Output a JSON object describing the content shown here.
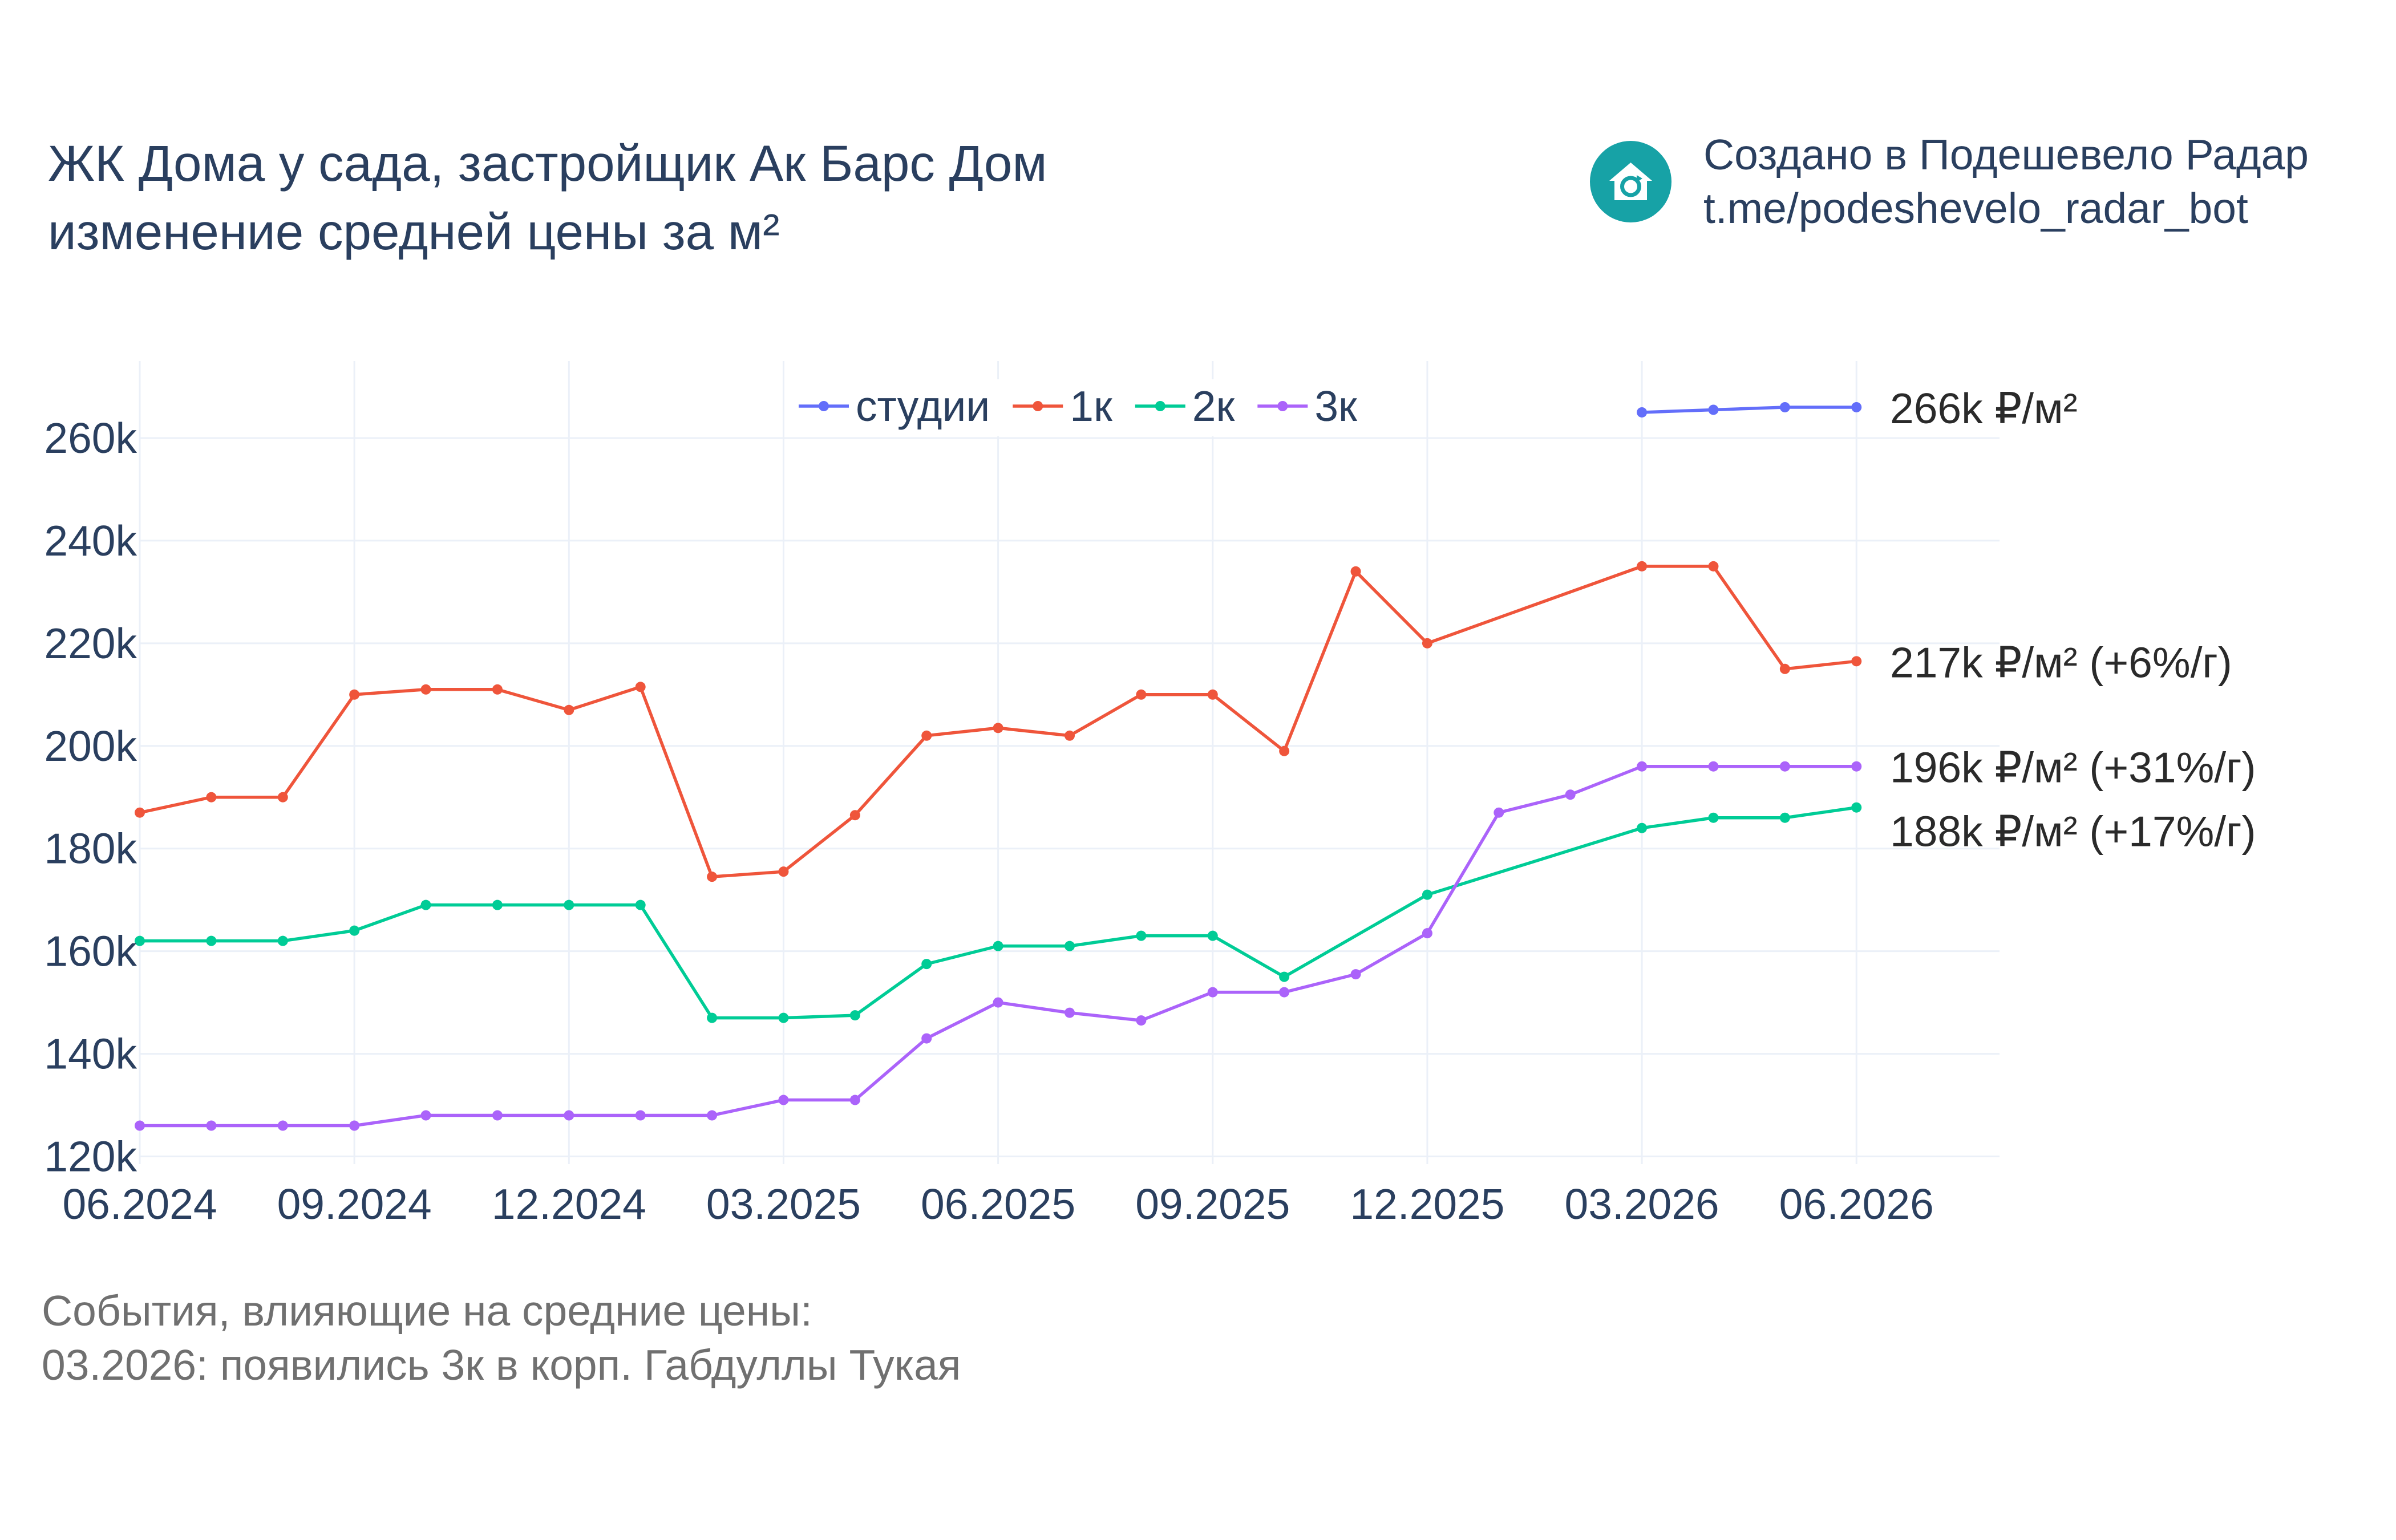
{
  "title": {
    "line1": "ЖК Дома у сада, застройщик Ак Барс Дом",
    "line2": "изменение средней цены за м²"
  },
  "credit": {
    "line1": "Создано в Подешевело Радар",
    "line2": "t.me/podeshevelo_radar_bot",
    "logo_icon": "house-refresh-icon",
    "logo_color": "#17a2a6"
  },
  "notes": {
    "line1": "События, влияющие на средние цены:",
    "line2": "03.2026: появились 3к в корп. Габдуллы Тукая"
  },
  "chart_data": {
    "type": "line",
    "x_tick_labels": [
      "06.2024",
      "09.2024",
      "12.2024",
      "03.2025",
      "06.2025",
      "09.2025",
      "12.2025",
      "03.2026",
      "06.2026"
    ],
    "y_tick_labels": [
      "120k",
      "140k",
      "160k",
      "180k",
      "200k",
      "220k",
      "240k",
      "260k"
    ],
    "y_ticks": [
      120000,
      140000,
      160000,
      180000,
      200000,
      220000,
      240000,
      260000
    ],
    "ylim": [
      118500,
      275000
    ],
    "xlim": [
      "2024-06",
      "2026-08"
    ],
    "grid": true,
    "legend_position": "top-center",
    "series": [
      {
        "name": "студии",
        "color": "#636efa",
        "end_label": "266k ₽/м²",
        "points": [
          [
            "2026-03",
            265000
          ],
          [
            "2026-04",
            265500
          ],
          [
            "2026-05",
            266000
          ],
          [
            "2026-06",
            266000
          ]
        ]
      },
      {
        "name": "1к",
        "color": "#ef553b",
        "end_label": "217k ₽/м² (+6%/г)",
        "points": [
          [
            "2024-06",
            187000
          ],
          [
            "2024-07",
            190000
          ],
          [
            "2024-08",
            190000
          ],
          [
            "2024-09",
            210000
          ],
          [
            "2024-10",
            211000
          ],
          [
            "2024-11",
            211000
          ],
          [
            "2024-12",
            207000
          ],
          [
            "2025-01",
            211500
          ],
          [
            "2025-02",
            174500
          ],
          [
            "2025-03",
            175500
          ],
          [
            "2025-04",
            186500
          ],
          [
            "2025-05",
            202000
          ],
          [
            "2025-06",
            203500
          ],
          [
            "2025-07",
            202000
          ],
          [
            "2025-08",
            210000
          ],
          [
            "2025-09",
            210000
          ],
          [
            "2025-10",
            199000
          ],
          [
            "2025-11",
            234000
          ],
          [
            "2025-12",
            220000
          ],
          [
            "2026-03",
            235000
          ],
          [
            "2026-04",
            235000
          ],
          [
            "2026-05",
            215000
          ],
          [
            "2026-06",
            216500
          ]
        ]
      },
      {
        "name": "2к",
        "color": "#00cc96",
        "end_label": "188k ₽/м² (+17%/г)",
        "points": [
          [
            "2024-06",
            162000
          ],
          [
            "2024-07",
            162000
          ],
          [
            "2024-08",
            162000
          ],
          [
            "2024-09",
            164000
          ],
          [
            "2024-10",
            169000
          ],
          [
            "2024-11",
            169000
          ],
          [
            "2024-12",
            169000
          ],
          [
            "2025-01",
            169000
          ],
          [
            "2025-02",
            147000
          ],
          [
            "2025-03",
            147000
          ],
          [
            "2025-04",
            147500
          ],
          [
            "2025-05",
            157500
          ],
          [
            "2025-06",
            161000
          ],
          [
            "2025-07",
            161000
          ],
          [
            "2025-08",
            163000
          ],
          [
            "2025-09",
            163000
          ],
          [
            "2025-10",
            155000
          ],
          [
            "2025-12",
            171000
          ],
          [
            "2026-03",
            184000
          ],
          [
            "2026-04",
            186000
          ],
          [
            "2026-05",
            186000
          ],
          [
            "2026-06",
            188000
          ]
        ]
      },
      {
        "name": "3к",
        "color": "#ab63fa",
        "end_label": "196k ₽/м² (+31%/г)",
        "points": [
          [
            "2024-06",
            126000
          ],
          [
            "2024-07",
            126000
          ],
          [
            "2024-08",
            126000
          ],
          [
            "2024-09",
            126000
          ],
          [
            "2024-10",
            128000
          ],
          [
            "2024-11",
            128000
          ],
          [
            "2024-12",
            128000
          ],
          [
            "2025-01",
            128000
          ],
          [
            "2025-02",
            128000
          ],
          [
            "2025-03",
            131000
          ],
          [
            "2025-04",
            131000
          ],
          [
            "2025-05",
            143000
          ],
          [
            "2025-06",
            150000
          ],
          [
            "2025-07",
            148000
          ],
          [
            "2025-08",
            146500
          ],
          [
            "2025-09",
            152000
          ],
          [
            "2025-10",
            152000
          ],
          [
            "2025-11",
            155500
          ],
          [
            "2025-12",
            163500
          ],
          [
            "2026-01",
            187000
          ],
          [
            "2026-02",
            190500
          ],
          [
            "2026-03",
            196000
          ],
          [
            "2026-04",
            196000
          ],
          [
            "2026-05",
            196000
          ],
          [
            "2026-06",
            196000
          ]
        ]
      }
    ]
  }
}
